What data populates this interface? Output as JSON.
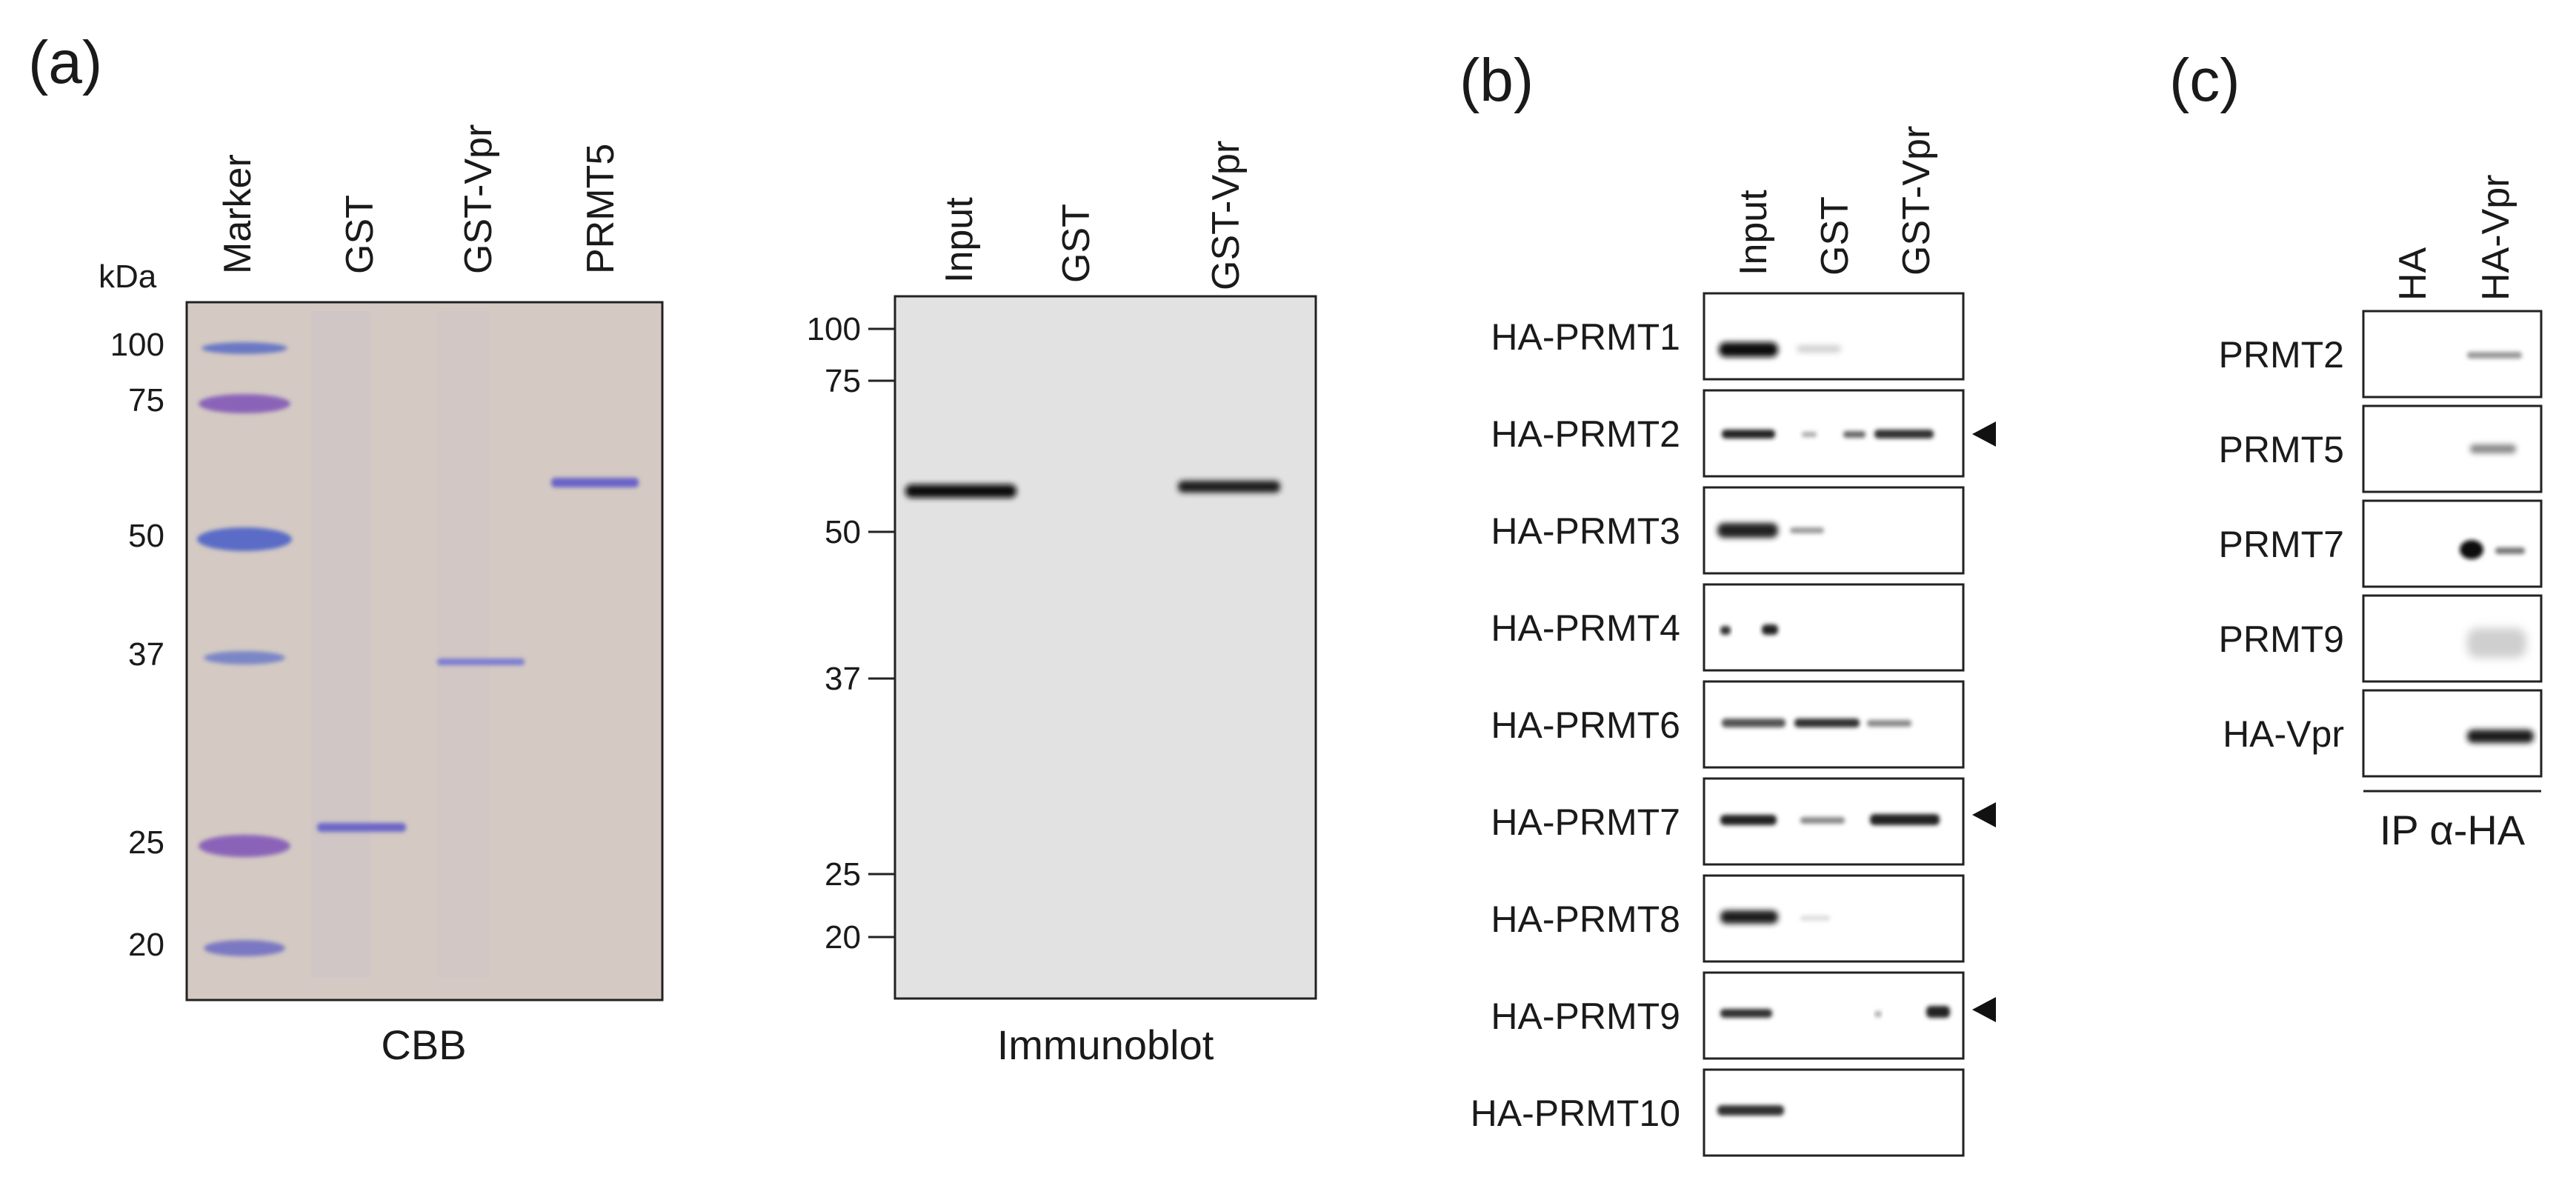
{
  "panel_a": {
    "letter": "(a)",
    "cbb": {
      "lanes": [
        "Marker",
        "GST",
        "GST-Vpr",
        "PRMT5"
      ],
      "unit": "kDa",
      "markers": [
        "100",
        "75",
        "50",
        "37",
        "25",
        "20"
      ],
      "caption": "CBB",
      "colors": {
        "gel": "#d4cac3",
        "marker_blue": "#6a78c4",
        "marker_purple": "#8a64b8",
        "band": "#6a66c8"
      }
    },
    "immunoblot": {
      "lanes": [
        "Input",
        "GST",
        "GST-Vpr"
      ],
      "markers": [
        "100",
        "75",
        "50",
        "37",
        "25",
        "20"
      ],
      "caption": "Immunoblot",
      "colors": {
        "membrane": "#e2e2e2",
        "band": "#111111"
      }
    }
  },
  "panel_b": {
    "letter": "(b)",
    "lanes": [
      "Input",
      "GST",
      "GST-Vpr"
    ],
    "rows": [
      "HA-PRMT1",
      "HA-PRMT2",
      "HA-PRMT3",
      "HA-PRMT4",
      "HA-PRMT6",
      "HA-PRMT7",
      "HA-PRMT8",
      "HA-PRMT9",
      "HA-PRMT10"
    ],
    "arrowhead_rows": [
      "HA-PRMT2",
      "HA-PRMT7",
      "HA-PRMT9"
    ]
  },
  "panel_c": {
    "letter": "(c)",
    "lanes": [
      "HA",
      "HA-Vpr"
    ],
    "rows": [
      "PRMT2",
      "PRMT5",
      "PRMT7",
      "PRMT9",
      "HA-Vpr"
    ],
    "caption": "IP α-HA"
  }
}
